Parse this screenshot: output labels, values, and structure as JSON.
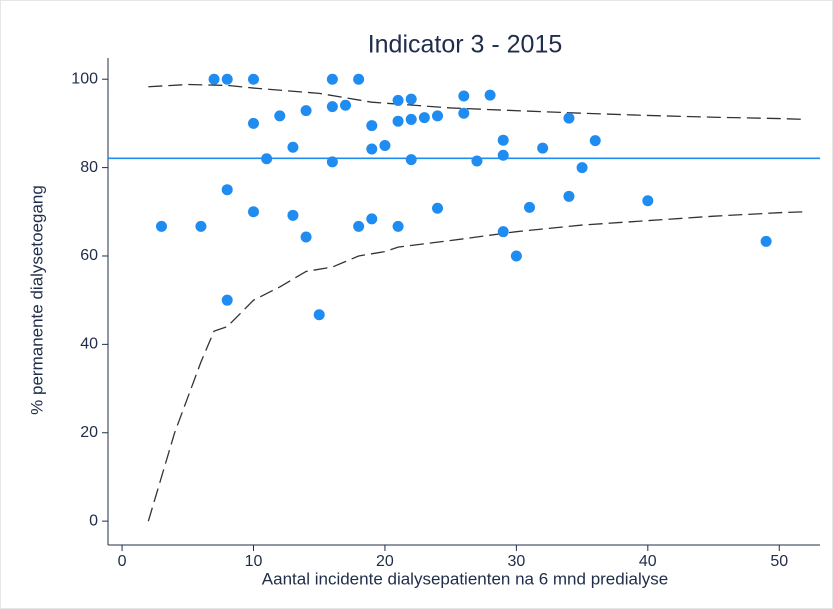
{
  "chart_data": {
    "type": "scatter",
    "title": "Indicator 3 - 2015",
    "x_label": "Aantal incidente dialysepatienten na 6 mnd predialyse",
    "y_label": "% permanente dialysetoegang",
    "xlim": [
      -1.07,
      53.1
    ],
    "ylim": [
      -5.4,
      104.8
    ],
    "xticks": [
      0,
      10,
      20,
      30,
      40,
      50
    ],
    "yticks": [
      0,
      20,
      40,
      60,
      80,
      100
    ],
    "series": [
      {
        "color": "#1e8cf0",
        "x": [
          3,
          6,
          7,
          8,
          8,
          8,
          10,
          10,
          10,
          11,
          12,
          13,
          13,
          14,
          14,
          15,
          16,
          16,
          16,
          17,
          18,
          18,
          19,
          19,
          19,
          20,
          21,
          21,
          21,
          22,
          22,
          22,
          23,
          24,
          24,
          26,
          26,
          27,
          28,
          29,
          29,
          29,
          30,
          31,
          32,
          34,
          34,
          35,
          36,
          40,
          49
        ],
        "values": [
          66.7,
          66.7,
          100,
          100,
          75,
          50,
          100,
          90,
          70,
          82,
          91.7,
          84.6,
          69.2,
          92.9,
          64.3,
          46.7,
          100,
          93.8,
          81.3,
          94.1,
          100,
          66.7,
          89.5,
          84.2,
          68.4,
          85,
          95.2,
          90.5,
          66.7,
          95.5,
          90.9,
          81.8,
          91.3,
          91.7,
          70.8,
          96.2,
          92.3,
          81.5,
          96.4,
          86.2,
          82.8,
          65.5,
          60,
          71,
          84.4,
          91.2,
          73.5,
          80,
          86.1,
          72.5,
          63.3
        ]
      }
    ],
    "reference_line": {
      "value": 82.1,
      "color": "#1e8cf0"
    },
    "limits": [
      {
        "color": "#333333",
        "x": [
          2,
          5,
          8,
          10,
          15,
          19,
          25,
          29,
          35,
          40,
          45,
          50,
          52
        ],
        "values": [
          98.3,
          98.8,
          98.6,
          98,
          96.8,
          94.8,
          93.5,
          93,
          92.3,
          91.8,
          91.4,
          91.1,
          90.9
        ]
      },
      {
        "color": "#333333",
        "x": [
          2,
          4,
          6,
          7,
          8,
          10,
          12,
          14,
          16,
          18,
          20,
          21,
          25,
          30,
          35,
          40,
          45,
          50,
          52
        ],
        "values": [
          0,
          20,
          36,
          43,
          44,
          50,
          53,
          56.5,
          57.5,
          60,
          61,
          62,
          63.5,
          65.5,
          67,
          68,
          69,
          69.8,
          70
        ]
      }
    ]
  }
}
